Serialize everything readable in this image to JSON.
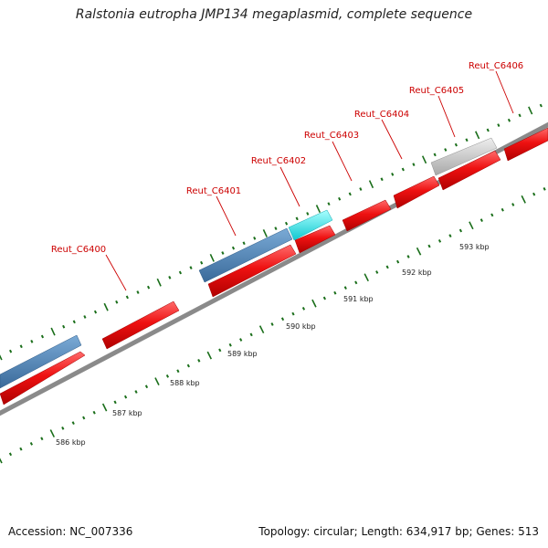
{
  "header": {
    "title": "Ralstonia eutropha JMP134 megaplasmid, complete sequence"
  },
  "footer": {
    "accession": "Accession: NC_007336",
    "summary": "Topology: circular; Length: 634,917 bp; Genes: 513"
  },
  "map": {
    "colors": {
      "backbone": "#888888",
      "tick": "#1a6e1a",
      "cds": "#ee1111",
      "cds_blue": "#4a7fb4",
      "cds_cyan": "#22e8ee",
      "cds_gray": "#c2c2c2",
      "label": "#cc0000"
    },
    "kbp_ticks": [
      "586 kbp",
      "587 kbp",
      "588 kbp",
      "589 kbp",
      "590 kbp",
      "591 kbp",
      "592 kbp",
      "593 kbp"
    ],
    "gene_labels": [
      "Reut_C6400",
      "Reut_C6401",
      "Reut_C6402",
      "Reut_C6403",
      "Reut_C6404",
      "Reut_C6405",
      "Reut_C6406"
    ]
  }
}
